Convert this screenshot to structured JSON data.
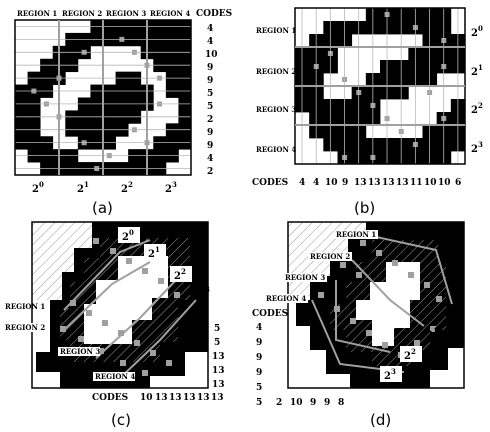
{
  "panels": [
    {
      "caption": "(a)",
      "regions": [
        "REGION 1",
        "REGION 2",
        "REGION 3",
        "REGION 4"
      ],
      "codes_title": "CODES",
      "codes": [
        "4",
        "4",
        "10",
        "9",
        "9",
        "5",
        "5",
        "2",
        "9",
        "9",
        "4",
        "2"
      ],
      "powers": [
        "2",
        "2",
        "2",
        "2"
      ],
      "power_exps": [
        "0",
        "1",
        "2",
        "3"
      ]
    },
    {
      "caption": "(b)",
      "regions": [
        "REGION 1",
        "REGION 2",
        "REGION 3",
        "REGION 4"
      ],
      "codes_title": "CODES",
      "codes": [
        "4",
        "4",
        "10",
        "9",
        "13",
        "13",
        "13",
        "13",
        "11",
        "10",
        "10",
        "6"
      ],
      "powers": [
        "2",
        "2",
        "2",
        "2"
      ],
      "power_exps": [
        "0",
        "1",
        "2",
        "3"
      ]
    },
    {
      "caption": "(c)",
      "regions": [
        "REGION 1",
        "REGION 2",
        "REGION 3",
        "REGION 4"
      ],
      "codes_title": "CODES",
      "codes_bottom": [
        "10",
        "13",
        "13",
        "13",
        "13",
        "13"
      ],
      "codes_right": [
        "5",
        "5",
        "13",
        "13",
        "13"
      ],
      "powers": [
        "2",
        "2",
        "2",
        "2"
      ],
      "power_exps": [
        "0",
        "1",
        "2",
        "3"
      ]
    },
    {
      "caption": "(d)",
      "regions": [
        "REGION 1",
        "REGION 2",
        "REGION 3",
        "REGION 4"
      ],
      "codes_title": "CODES",
      "codes_left": [
        "4",
        "9",
        "9",
        "9",
        "5"
      ],
      "codes_bottom": [
        "5",
        "2",
        "10",
        "9",
        "9",
        "8"
      ],
      "powers": [
        "2",
        "2",
        "2",
        "2"
      ],
      "power_exps": [
        "0",
        "1",
        "2",
        "3"
      ]
    }
  ]
}
